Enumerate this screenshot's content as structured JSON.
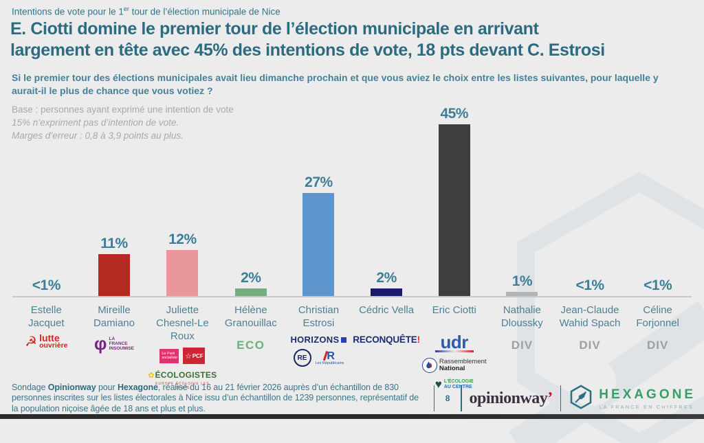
{
  "header": {
    "kicker_prefix": "Intentions de vote pour le 1",
    "kicker_sup": "er",
    "kicker_suffix": " tour de l’élection municipale de Nice",
    "title_line1": "E. Ciotti domine le premier tour de l’élection municipale en arrivant",
    "title_line2": "largement en tête avec 45% des intentions de vote, 18 pts devant C. Estrosi"
  },
  "question": "Si le premier tour des élections municipales avait lieu dimanche prochain et que vous aviez le choix entre les listes suivantes, pour laquelle y aurait-il le plus de chance que vous votiez ?",
  "base": {
    "line1": "Base : personnes ayant exprimé une intention de vote",
    "line2": "15% n’expriment pas d’intention de vote.",
    "line3": "Marges d’erreur : 0,8 à 3,9 points au plus."
  },
  "chart_data": {
    "type": "bar",
    "title": "Intentions de vote pour le 1er tour de l’élection municipale de Nice",
    "unit": "%",
    "ylim": [
      0,
      50
    ],
    "grid": false,
    "legend": "none",
    "categories": [
      "Estelle Jacquet",
      "Mireille Damiano",
      "Juliette Chesnel-Le Roux",
      "Hélène Granouillac",
      "Christian Estrosi",
      "Cédric Vella",
      "Eric Ciotti",
      "Nathalie Dloussky",
      "Jean-Claude Wahid Spach",
      "Céline Forjonnel"
    ],
    "values": [
      0.5,
      11,
      12,
      2,
      27,
      2,
      45,
      1,
      0.5,
      0.5
    ],
    "value_labels": [
      "<1%",
      "11%",
      "12%",
      "2%",
      "27%",
      "2%",
      "45%",
      "1%",
      "<1%",
      "<1%"
    ],
    "bar_colors": [
      "none",
      "#b22a20",
      "#e9969c",
      "#73af81",
      "#5e95cc",
      "#1c1a6e",
      "#3e3e3e",
      "#b4b4b4",
      "none",
      "none"
    ],
    "parties_by_candidate": [
      [
        "Lutte ouvrière"
      ],
      [
        "La France insoumise"
      ],
      [
        "Le Parti socialiste",
        "PCF",
        "Les Écologistes"
      ],
      [
        "ECO"
      ],
      [
        "Horizons",
        "Renaissance",
        "Les Républicains"
      ],
      [
        "Reconquête"
      ],
      [
        "UDR",
        "Rassemblement National",
        "L'Écologie au centre"
      ],
      [
        "DIV"
      ],
      [
        "DIV"
      ],
      [
        "DIV"
      ]
    ]
  },
  "parties": {
    "lo": {
      "l1": "lutte",
      "l2": "ouvrière"
    },
    "lfi": {
      "sym": "φ",
      "l1": "LA",
      "l2": "FRANCE",
      "l3": "INSOUMISE"
    },
    "ps": {
      "l1": "Le Parti",
      "l2": "socialiste"
    },
    "pcf": {
      "label": "PCF",
      "star": "☆"
    },
    "ecolos": {
      "flower": "✿",
      "main": "ÉCOLOGISTES",
      "sub": "EUROPE ÉCOLOGIE LES VERTS"
    },
    "eco": "ECO",
    "horizons": "HORIZONS",
    "re": "RE",
    "lr": {
      "mark": "R",
      "sub": "Les Républicains"
    },
    "reconquete": {
      "text": "RECONQUÊTE",
      "bang": "!"
    },
    "udr": "udr",
    "rn": {
      "l1": "Rassemblement",
      "l2": "National"
    },
    "eac": {
      "heart": "♥",
      "l1": "L'ÉCOLOGIE",
      "l2": "AU CENTRE"
    },
    "div": "DIV"
  },
  "footer": {
    "t1": "Sondage ",
    "t2": "Opinionway",
    "t3": " pour ",
    "t4": "Hexagone",
    "t5": ", réalisé du 16 au 21 février 2026 auprès d’un échantillon de 830 personnes inscrites sur les listes électorales à Nice issu d’un échantillon de 1239 personnes, représentatif de la population niçoise âgée de 18 ans et plus et plus.",
    "page": "8",
    "opinionway": "opinionway",
    "ow_apostrophe": "’",
    "hexagone": "HEXAGONE",
    "tagline": "LA FRANCE EN CHIFFRES"
  }
}
